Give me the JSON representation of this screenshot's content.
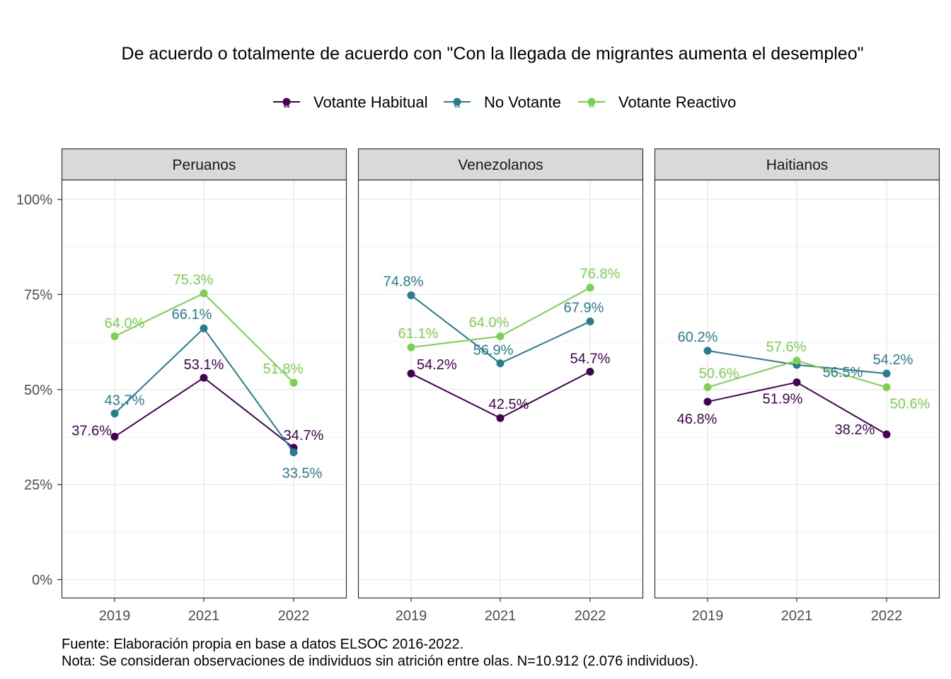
{
  "chart_data": {
    "type": "line",
    "title": "De acuerdo o totalmente de acuerdo con \"Con la llegada de migrantes aumenta el desempleo\"",
    "xlabel": "",
    "ylabel": "",
    "x": [
      "2019",
      "2021",
      "2022"
    ],
    "ylim": [
      0,
      100
    ],
    "y_ticks": [
      "0%",
      "25%",
      "50%",
      "75%",
      "100%"
    ],
    "legend_position": "top",
    "grid": true,
    "legend_key_letter": "a",
    "series_meta": [
      {
        "name": "Votante Habitual",
        "color": "#440154"
      },
      {
        "name": "No Votante",
        "color": "#287C8E"
      },
      {
        "name": "Votante Reactivo",
        "color": "#7AD151"
      }
    ],
    "panels": [
      {
        "title": "Peruanos",
        "series": [
          {
            "name": "Votante Habitual",
            "values": [
              37.6,
              53.1,
              34.7
            ],
            "labels": [
              "37.6%",
              "53.1%",
              "34.7%"
            ]
          },
          {
            "name": "No Votante",
            "values": [
              43.7,
              66.1,
              33.5
            ],
            "labels": [
              "43.7%",
              "66.1%",
              "33.5%"
            ]
          },
          {
            "name": "Votante Reactivo",
            "values": [
              64.0,
              75.3,
              51.8
            ],
            "labels": [
              "64.0%",
              "75.3%",
              "51.8%"
            ]
          }
        ]
      },
      {
        "title": "Venezolanos",
        "series": [
          {
            "name": "Votante Habitual",
            "values": [
              54.2,
              42.5,
              54.7
            ],
            "labels": [
              "54.2%",
              "42.5%",
              "54.7%"
            ]
          },
          {
            "name": "No Votante",
            "values": [
              74.8,
              56.9,
              67.9
            ],
            "labels": [
              "74.8%",
              "56.9%",
              "67.9%"
            ]
          },
          {
            "name": "Votante Reactivo",
            "values": [
              61.1,
              64.0,
              76.8
            ],
            "labels": [
              "61.1%",
              "64.0%",
              "76.8%"
            ]
          }
        ]
      },
      {
        "title": "Haitianos",
        "series": [
          {
            "name": "Votante Habitual",
            "values": [
              46.8,
              51.9,
              38.2
            ],
            "labels": [
              "46.8%",
              "51.9%",
              "38.2%"
            ]
          },
          {
            "name": "No Votante",
            "values": [
              60.2,
              56.5,
              54.2
            ],
            "labels": [
              "60.2%",
              "56.5%",
              "54.2%"
            ]
          },
          {
            "name": "Votante Reactivo",
            "values": [
              50.6,
              57.6,
              50.6
            ],
            "labels": [
              "50.6%",
              "57.6%",
              "50.6%"
            ]
          }
        ]
      }
    ],
    "caption": [
      "Fuente: Elaboración propia en base a datos ELSOC 2016-2022.",
      "Nota: Se consideran observaciones de individuos sin atrición entre olas. N=10.912 (2.076 individuos)."
    ]
  }
}
